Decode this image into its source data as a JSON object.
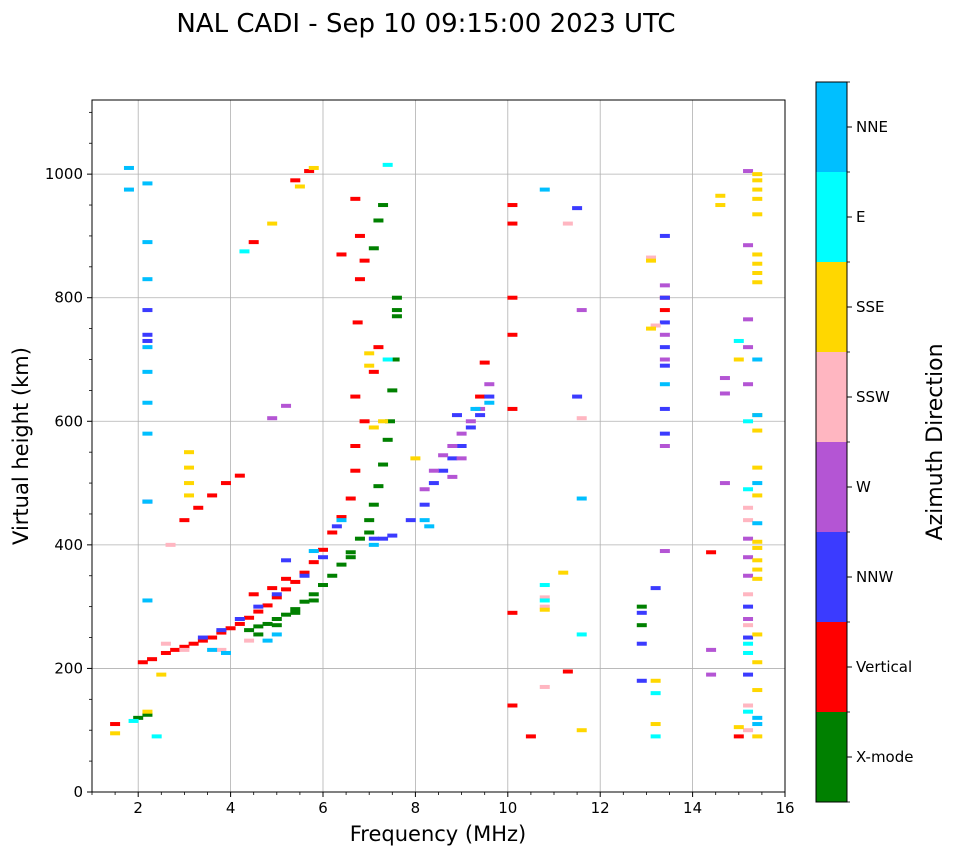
{
  "chart_data": {
    "type": "scatter",
    "title": "NAL CADI - Sep 10 09:15:00 2023 UTC",
    "xlabel": "Frequency (MHz)",
    "ylabel": "Virtual height (km)",
    "xlim": [
      1,
      16
    ],
    "ylim": [
      0,
      1120
    ],
    "xticks": [
      2,
      4,
      6,
      8,
      10,
      12,
      14,
      16
    ],
    "yticks": [
      0,
      200,
      400,
      600,
      800,
      1000
    ],
    "grid": true,
    "colorbar": {
      "title": "Azimuth Direction",
      "categories": [
        {
          "name": "X-mode",
          "color": "#008000"
        },
        {
          "name": "Vertical",
          "color": "#ff0000"
        },
        {
          "name": "NNW",
          "color": "#3b3bff"
        },
        {
          "name": "W",
          "color": "#b455d4"
        },
        {
          "name": "SSW",
          "color": "#ffb6c1"
        },
        {
          "name": "SSE",
          "color": "#ffd700"
        },
        {
          "name": "E",
          "color": "#00ffff"
        },
        {
          "name": "NNE",
          "color": "#00bfff"
        }
      ]
    },
    "series": [
      {
        "name": "X-mode",
        "points": [
          [
            4.4,
            262
          ],
          [
            4.6,
            268
          ],
          [
            4.8,
            272
          ],
          [
            5.0,
            280
          ],
          [
            5.2,
            287
          ],
          [
            5.4,
            296
          ],
          [
            5.6,
            308
          ],
          [
            5.8,
            320
          ],
          [
            6.0,
            335
          ],
          [
            6.2,
            350
          ],
          [
            6.4,
            368
          ],
          [
            6.6,
            388
          ],
          [
            6.8,
            410
          ],
          [
            7.0,
            440
          ],
          [
            7.1,
            465
          ],
          [
            7.2,
            495
          ],
          [
            7.3,
            530
          ],
          [
            7.4,
            570
          ],
          [
            7.45,
            600
          ],
          [
            7.5,
            650
          ],
          [
            7.55,
            700
          ],
          [
            7.6,
            770
          ],
          [
            7.6,
            800
          ],
          [
            7.3,
            950
          ],
          [
            7.2,
            925
          ],
          [
            7.1,
            880
          ],
          [
            2.0,
            120
          ],
          [
            2.2,
            125
          ],
          [
            12.9,
            300
          ],
          [
            12.9,
            270
          ],
          [
            4.6,
            255
          ],
          [
            5.0,
            270
          ],
          [
            5.4,
            290
          ],
          [
            5.8,
            310
          ],
          [
            6.6,
            380
          ],
          [
            7.0,
            420
          ],
          [
            7.6,
            780
          ]
        ]
      },
      {
        "name": "Vertical",
        "points": [
          [
            1.5,
            110
          ],
          [
            2.1,
            210
          ],
          [
            2.3,
            215
          ],
          [
            2.6,
            225
          ],
          [
            2.8,
            230
          ],
          [
            3.0,
            235
          ],
          [
            3.2,
            240
          ],
          [
            3.4,
            245
          ],
          [
            3.6,
            250
          ],
          [
            3.8,
            258
          ],
          [
            4.0,
            265
          ],
          [
            4.2,
            272
          ],
          [
            4.4,
            282
          ],
          [
            4.6,
            292
          ],
          [
            4.8,
            302
          ],
          [
            5.0,
            315
          ],
          [
            5.2,
            328
          ],
          [
            5.4,
            340
          ],
          [
            5.6,
            355
          ],
          [
            5.8,
            372
          ],
          [
            6.0,
            392
          ],
          [
            6.2,
            420
          ],
          [
            6.4,
            445
          ],
          [
            6.6,
            475
          ],
          [
            6.7,
            560
          ],
          [
            6.7,
            640
          ],
          [
            6.75,
            760
          ],
          [
            6.8,
            830
          ],
          [
            6.8,
            900
          ],
          [
            6.7,
            960
          ],
          [
            6.4,
            870
          ],
          [
            7.2,
            720
          ],
          [
            7.1,
            680
          ],
          [
            6.9,
            600
          ],
          [
            6.7,
            520
          ],
          [
            3.0,
            440
          ],
          [
            3.3,
            460
          ],
          [
            3.6,
            480
          ],
          [
            3.9,
            500
          ],
          [
            4.2,
            512
          ],
          [
            4.5,
            890
          ],
          [
            5.4,
            990
          ],
          [
            5.7,
            1005
          ],
          [
            9.5,
            695
          ],
          [
            9.4,
            640
          ],
          [
            10.1,
            950
          ],
          [
            10.1,
            920
          ],
          [
            10.1,
            800
          ],
          [
            10.1,
            740
          ],
          [
            10.1,
            620
          ],
          [
            10.1,
            290
          ],
          [
            10.1,
            140
          ],
          [
            10.5,
            90
          ],
          [
            11.3,
            195
          ],
          [
            13.4,
            780
          ],
          [
            13.4,
            800
          ],
          [
            14.4,
            388
          ],
          [
            15.0,
            90
          ],
          [
            4.5,
            320
          ],
          [
            4.9,
            330
          ],
          [
            5.2,
            345
          ],
          [
            6.9,
            860
          ]
        ]
      },
      {
        "name": "NNW",
        "points": [
          [
            2.2,
            780
          ],
          [
            2.2,
            740
          ],
          [
            2.2,
            730
          ],
          [
            2.2,
            470
          ],
          [
            3.4,
            250
          ],
          [
            3.8,
            262
          ],
          [
            4.2,
            280
          ],
          [
            4.6,
            300
          ],
          [
            5.0,
            320
          ],
          [
            5.2,
            375
          ],
          [
            5.6,
            350
          ],
          [
            6.0,
            380
          ],
          [
            6.3,
            430
          ],
          [
            7.1,
            410
          ],
          [
            7.3,
            410
          ],
          [
            7.5,
            415
          ],
          [
            7.9,
            440
          ],
          [
            8.2,
            465
          ],
          [
            8.4,
            500
          ],
          [
            8.6,
            520
          ],
          [
            8.8,
            540
          ],
          [
            9.0,
            560
          ],
          [
            9.2,
            590
          ],
          [
            9.4,
            610
          ],
          [
            9.6,
            640
          ],
          [
            8.9,
            610
          ],
          [
            13.4,
            900
          ],
          [
            13.4,
            800
          ],
          [
            13.4,
            760
          ],
          [
            13.4,
            720
          ],
          [
            13.4,
            690
          ],
          [
            13.4,
            620
          ],
          [
            13.4,
            580
          ],
          [
            12.9,
            180
          ],
          [
            12.9,
            240
          ],
          [
            12.9,
            290
          ],
          [
            15.2,
            300
          ],
          [
            15.2,
            250
          ],
          [
            15.2,
            190
          ],
          [
            11.5,
            945
          ],
          [
            11.5,
            640
          ],
          [
            13.2,
            330
          ]
        ]
      },
      {
        "name": "W",
        "points": [
          [
            8.2,
            490
          ],
          [
            8.4,
            520
          ],
          [
            8.6,
            545
          ],
          [
            8.8,
            560
          ],
          [
            8.8,
            510
          ],
          [
            9.0,
            580
          ],
          [
            9.0,
            540
          ],
          [
            9.2,
            600
          ],
          [
            9.4,
            620
          ],
          [
            9.6,
            660
          ],
          [
            13.4,
            820
          ],
          [
            13.4,
            740
          ],
          [
            13.4,
            700
          ],
          [
            13.4,
            560
          ],
          [
            13.4,
            390
          ],
          [
            11.6,
            780
          ],
          [
            14.4,
            230
          ],
          [
            14.4,
            190
          ],
          [
            14.7,
            500
          ],
          [
            14.7,
            645
          ],
          [
            14.7,
            670
          ],
          [
            15.2,
            410
          ],
          [
            15.2,
            380
          ],
          [
            15.2,
            350
          ],
          [
            15.2,
            280
          ],
          [
            15.2,
            660
          ],
          [
            15.2,
            720
          ],
          [
            15.2,
            765
          ],
          [
            15.2,
            885
          ],
          [
            15.2,
            1005
          ],
          [
            4.9,
            605
          ],
          [
            5.2,
            625
          ]
        ]
      },
      {
        "name": "SSW",
        "points": [
          [
            2.7,
            400
          ],
          [
            2.6,
            240
          ],
          [
            3.0,
            230
          ],
          [
            3.8,
            230
          ],
          [
            4.4,
            245
          ],
          [
            10.8,
            315
          ],
          [
            10.8,
            300
          ],
          [
            10.8,
            170
          ],
          [
            11.3,
            920
          ],
          [
            11.6,
            605
          ],
          [
            13.1,
            865
          ],
          [
            13.2,
            755
          ],
          [
            15.2,
            460
          ],
          [
            15.2,
            440
          ],
          [
            15.2,
            320
          ],
          [
            15.2,
            270
          ],
          [
            15.2,
            140
          ],
          [
            15.2,
            100
          ]
        ]
      },
      {
        "name": "SSE",
        "points": [
          [
            1.5,
            95
          ],
          [
            2.2,
            130
          ],
          [
            2.5,
            190
          ],
          [
            3.1,
            480
          ],
          [
            3.1,
            500
          ],
          [
            3.1,
            525
          ],
          [
            3.1,
            550
          ],
          [
            5.5,
            980
          ],
          [
            5.8,
            1010
          ],
          [
            4.9,
            920
          ],
          [
            7.3,
            600
          ],
          [
            7.0,
            710
          ],
          [
            7.0,
            690
          ],
          [
            7.1,
            590
          ],
          [
            8.0,
            540
          ],
          [
            10.8,
            295
          ],
          [
            11.2,
            355
          ],
          [
            11.6,
            100
          ],
          [
            13.1,
            860
          ],
          [
            13.1,
            750
          ],
          [
            13.2,
            180
          ],
          [
            13.2,
            110
          ],
          [
            14.6,
            965
          ],
          [
            14.6,
            950
          ],
          [
            15.0,
            700
          ],
          [
            15.0,
            105
          ],
          [
            15.4,
            1000
          ],
          [
            15.4,
            990
          ],
          [
            15.4,
            975
          ],
          [
            15.4,
            960
          ],
          [
            15.4,
            935
          ],
          [
            15.4,
            870
          ],
          [
            15.4,
            855
          ],
          [
            15.4,
            840
          ],
          [
            15.4,
            825
          ],
          [
            15.4,
            610
          ],
          [
            15.4,
            585
          ],
          [
            15.4,
            525
          ],
          [
            15.4,
            480
          ],
          [
            15.4,
            405
          ],
          [
            15.4,
            395
          ],
          [
            15.4,
            375
          ],
          [
            15.4,
            360
          ],
          [
            15.4,
            345
          ],
          [
            15.4,
            255
          ],
          [
            15.4,
            210
          ],
          [
            15.4,
            165
          ],
          [
            15.4,
            90
          ]
        ]
      },
      {
        "name": "E",
        "points": [
          [
            1.9,
            115
          ],
          [
            2.4,
            90
          ],
          [
            4.3,
            875
          ],
          [
            7.4,
            1015
          ],
          [
            7.4,
            700
          ],
          [
            10.8,
            335
          ],
          [
            10.8,
            310
          ],
          [
            11.6,
            255
          ],
          [
            13.2,
            90
          ],
          [
            13.2,
            160
          ],
          [
            15.0,
            730
          ],
          [
            15.2,
            600
          ],
          [
            15.2,
            490
          ],
          [
            15.2,
            240
          ],
          [
            15.2,
            225
          ],
          [
            15.2,
            130
          ]
        ]
      },
      {
        "name": "NNE",
        "points": [
          [
            1.8,
            1010
          ],
          [
            1.8,
            975
          ],
          [
            2.2,
            985
          ],
          [
            2.2,
            890
          ],
          [
            2.2,
            830
          ],
          [
            2.2,
            720
          ],
          [
            2.2,
            680
          ],
          [
            2.2,
            630
          ],
          [
            2.2,
            580
          ],
          [
            2.2,
            470
          ],
          [
            2.2,
            310
          ],
          [
            3.6,
            230
          ],
          [
            3.9,
            225
          ],
          [
            4.8,
            245
          ],
          [
            5.0,
            255
          ],
          [
            5.8,
            390
          ],
          [
            6.4,
            440
          ],
          [
            7.1,
            400
          ],
          [
            8.2,
            440
          ],
          [
            8.3,
            430
          ],
          [
            9.3,
            620
          ],
          [
            9.6,
            630
          ],
          [
            10.8,
            975
          ],
          [
            11.6,
            475
          ],
          [
            13.4,
            660
          ],
          [
            15.4,
            700
          ],
          [
            15.4,
            610
          ],
          [
            15.4,
            500
          ],
          [
            15.4,
            435
          ],
          [
            15.4,
            120
          ],
          [
            15.4,
            110
          ]
        ]
      }
    ]
  }
}
